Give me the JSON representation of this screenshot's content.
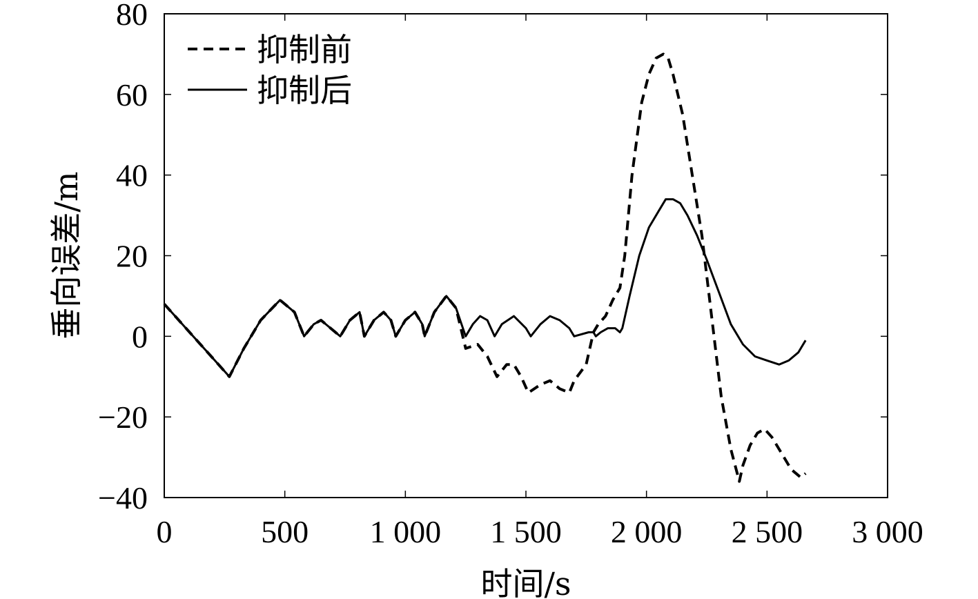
{
  "chart_data": {
    "type": "line",
    "title": "",
    "xlabel": "时间/s",
    "ylabel": "垂向误差/m",
    "xlim": [
      0,
      3000
    ],
    "ylim": [
      -40,
      80
    ],
    "xticks": [
      0,
      500,
      1000,
      1500,
      2000,
      2500,
      3000
    ],
    "xtick_labels": [
      "0",
      "500",
      "1 000",
      "1 500",
      "2 000",
      "2 500",
      "3 000"
    ],
    "yticks": [
      -40,
      -20,
      0,
      20,
      40,
      60,
      80
    ],
    "ytick_labels": [
      "−40",
      "−20",
      "0",
      "20",
      "40",
      "60",
      "80"
    ],
    "grid": false,
    "legend_position": "top-left",
    "series": [
      {
        "name": "抑制前",
        "style": "dashed",
        "x": [
          0,
          90,
          180,
          270,
          330,
          400,
          480,
          540,
          580,
          620,
          650,
          690,
          730,
          770,
          810,
          830,
          870,
          910,
          940,
          960,
          1000,
          1040,
          1070,
          1080,
          1120,
          1170,
          1210,
          1250,
          1300,
          1340,
          1380,
          1420,
          1450,
          1480,
          1510,
          1560,
          1600,
          1640,
          1680,
          1700,
          1750,
          1780,
          1800,
          1830,
          1860,
          1890,
          1910,
          1940,
          1980,
          2010,
          2040,
          2070,
          2090,
          2110,
          2150,
          2190,
          2230,
          2270,
          2310,
          2350,
          2385,
          2400,
          2430,
          2460,
          2490,
          2520,
          2560,
          2600,
          2640,
          2660
        ],
        "y": [
          8,
          2,
          -4,
          -10,
          -3,
          4,
          9,
          6,
          0,
          3,
          4,
          2,
          0,
          4,
          6,
          0,
          4,
          6,
          4,
          0,
          4,
          6,
          3,
          0,
          6,
          10,
          7,
          -3,
          -2,
          -5,
          -10,
          -7,
          -7,
          -10,
          -14,
          -12,
          -11,
          -13,
          -14,
          -11,
          -7,
          1,
          3,
          5,
          9,
          12,
          20,
          40,
          58,
          65,
          69,
          70,
          69,
          65,
          55,
          40,
          25,
          5,
          -15,
          -28,
          -36,
          -32,
          -27,
          -24,
          -23,
          -25,
          -29,
          -33,
          -35,
          -34
        ],
        "color": "#000000"
      },
      {
        "name": "抑制后",
        "style": "solid",
        "x": [
          0,
          90,
          180,
          270,
          330,
          400,
          480,
          540,
          580,
          620,
          650,
          690,
          730,
          770,
          810,
          830,
          870,
          910,
          940,
          960,
          1000,
          1040,
          1070,
          1080,
          1120,
          1170,
          1210,
          1250,
          1280,
          1310,
          1340,
          1370,
          1400,
          1450,
          1500,
          1520,
          1560,
          1600,
          1640,
          1680,
          1700,
          1760,
          1780,
          1790,
          1810,
          1840,
          1870,
          1890,
          1900,
          1930,
          1970,
          2010,
          2050,
          2080,
          2110,
          2140,
          2170,
          2210,
          2250,
          2300,
          2350,
          2400,
          2450,
          2500,
          2550,
          2590,
          2630,
          2660
        ],
        "y": [
          8,
          2,
          -4,
          -10,
          -3,
          4,
          9,
          6,
          0,
          3,
          4,
          2,
          0,
          4,
          6,
          0,
          4,
          6,
          4,
          0,
          4,
          6,
          3,
          0,
          6,
          10,
          7,
          0,
          3,
          5,
          4,
          0,
          3,
          5,
          2,
          0,
          3,
          5,
          4,
          2,
          0,
          1,
          1,
          0,
          1,
          2,
          2,
          1,
          2,
          10,
          20,
          27,
          31,
          34,
          34,
          33,
          30,
          25,
          19,
          11,
          3,
          -2,
          -5,
          -6,
          -7,
          -6,
          -4,
          -1
        ],
        "color": "#000000"
      }
    ]
  }
}
